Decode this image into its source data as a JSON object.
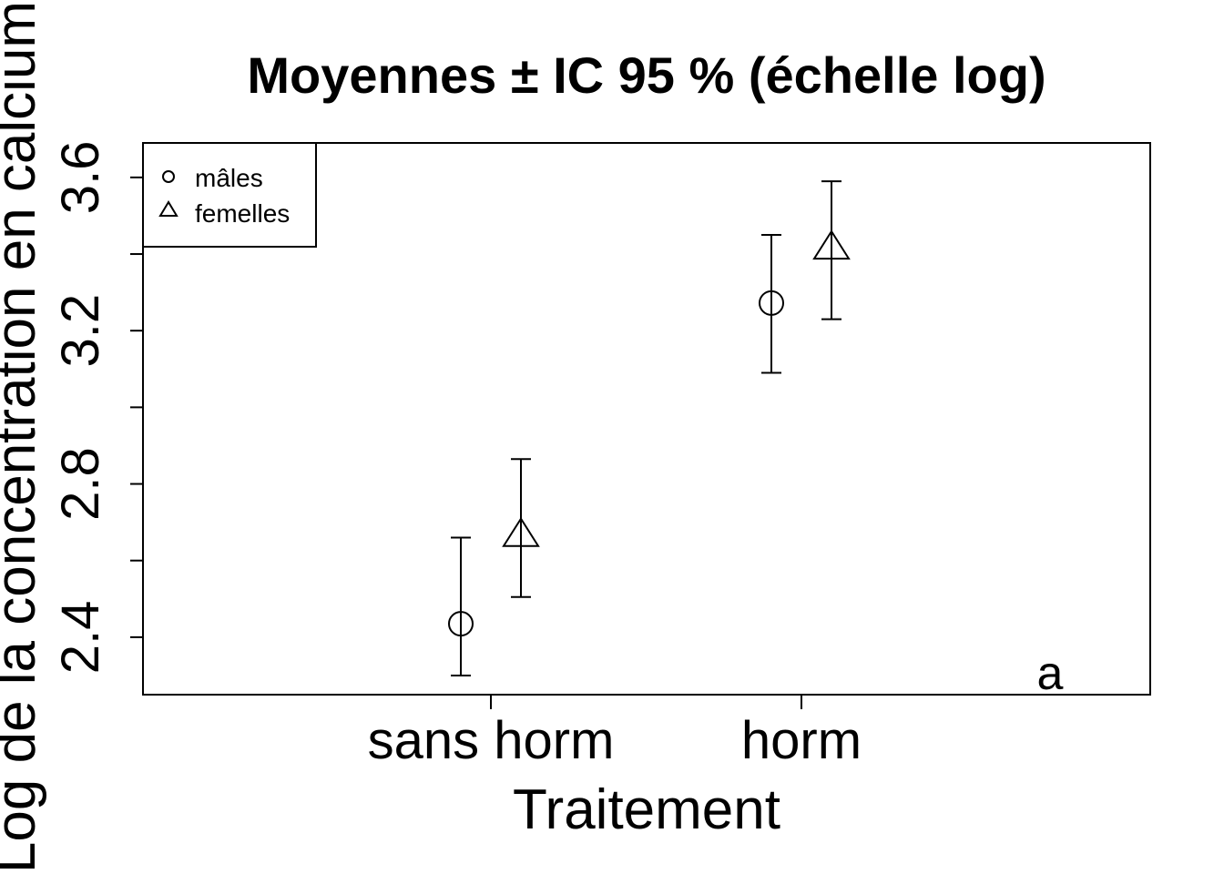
{
  "chart_data": {
    "type": "scatter",
    "title": "Moyennes ± IC 95 % (échelle log)",
    "xlabel": "Traitement",
    "ylabel": "Log de la concentration en calcium",
    "categories": [
      "sans horm",
      "horm"
    ],
    "y_ticks": [
      "2.4",
      "2.8",
      "3.2",
      "3.6"
    ],
    "ylim": [
      2.25,
      3.69
    ],
    "grid": false,
    "legend": {
      "position": "top-left",
      "entries": [
        {
          "label": "mâles",
          "marker": "circle"
        },
        {
          "label": "femelles",
          "marker": "triangle"
        }
      ]
    },
    "series": [
      {
        "name": "mâles",
        "marker": "circle",
        "means": [
          2.435,
          3.272
        ],
        "ci_low": [
          2.3,
          3.09
        ],
        "ci_high": [
          2.66,
          3.45
        ]
      },
      {
        "name": "femelles",
        "marker": "triangle",
        "means": [
          2.665,
          3.415
        ],
        "ci_low": [
          2.505,
          3.23
        ],
        "ci_high": [
          2.865,
          3.59
        ]
      }
    ],
    "annotation": "a",
    "colors": {
      "ink": "#000000",
      "background": "#ffffff"
    }
  }
}
